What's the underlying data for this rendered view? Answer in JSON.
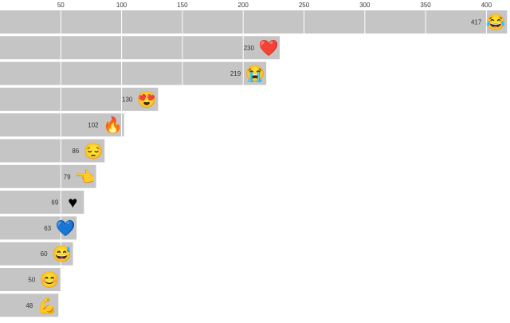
{
  "chart_data": {
    "type": "bar",
    "orientation": "horizontal",
    "title": "",
    "xlabel": "",
    "ylabel": "",
    "xlim": [
      0,
      417
    ],
    "xticks": [
      50,
      100,
      150,
      200,
      250,
      300,
      350,
      400
    ],
    "xtick_position": "top",
    "grid": true,
    "bar_color": "#c5c5c5",
    "grid_color": "#ffffff",
    "categories": [
      "face-with-tears-of-joy",
      "red-heart",
      "loudly-crying-face",
      "smiling-face-with-heart-eyes",
      "fire",
      "pensive-face",
      "backhand-index-pointing-left",
      "black-heart-suit",
      "blue-heart",
      "grinning-face-with-sweat",
      "smiling-face-with-smiling-eyes",
      "flexed-biceps"
    ],
    "emojis": [
      "😂",
      "❤️",
      "😭",
      "😍",
      "🔥",
      "😔",
      "👈",
      "♥",
      "💙",
      "😅",
      "😊",
      "💪"
    ],
    "values": [
      417,
      230,
      219,
      130,
      102,
      86,
      79,
      69,
      63,
      60,
      50,
      48
    ]
  }
}
